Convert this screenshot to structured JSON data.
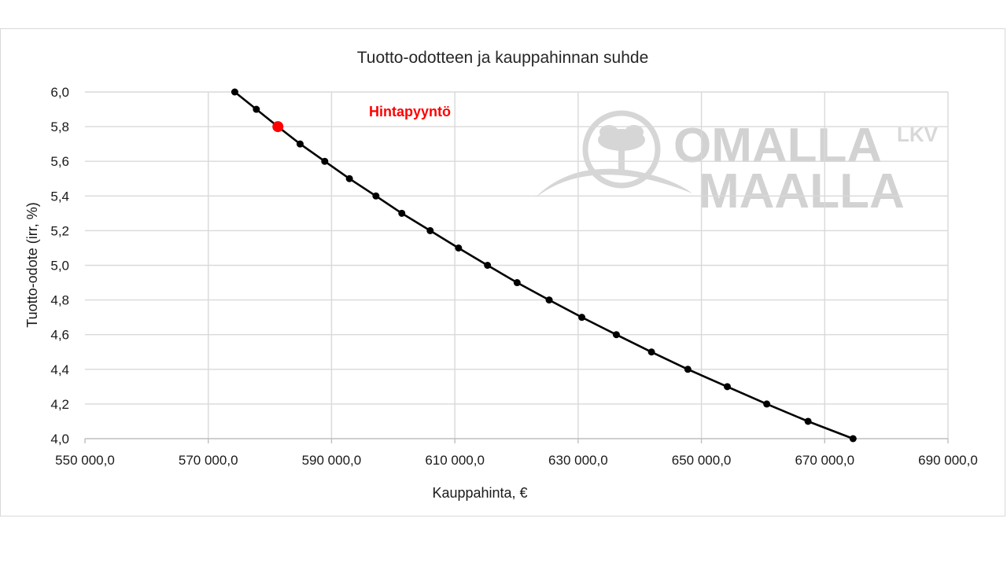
{
  "chart_data": {
    "type": "line",
    "title": "Tuotto-odotteen ja kauppahinnan suhde",
    "xlabel": "Kauppahinta, €",
    "ylabel": "Tuotto-odote (irr, %)",
    "xlim": [
      550000,
      690000
    ],
    "ylim": [
      4.0,
      6.0
    ],
    "x_ticks": [
      "550 000,0",
      "570 000,0",
      "590 000,0",
      "610 000,0",
      "630 000,0",
      "650 000,0",
      "670 000,0",
      "690 000,0"
    ],
    "y_ticks": [
      "6,0",
      "5,8",
      "5,6",
      "5,4",
      "5,2",
      "5,0",
      "4,8",
      "4,6",
      "4,4",
      "4,2",
      "4,0"
    ],
    "grid": true,
    "series": [
      {
        "color": "#000000",
        "x": [
          574300,
          577800,
          581300,
          584900,
          588900,
          592900,
          597200,
          601400,
          606000,
          610600,
          615300,
          620100,
          625300,
          630600,
          636200,
          641900,
          647800,
          654200,
          660600,
          667300,
          674600
        ],
        "y": [
          6.0,
          5.9,
          5.8,
          5.7,
          5.6,
          5.5,
          5.4,
          5.3,
          5.2,
          5.1,
          5.0,
          4.9,
          4.8,
          4.7,
          4.6,
          4.5,
          4.4,
          4.3,
          4.2,
          4.1,
          4.0
        ]
      }
    ],
    "highlight": {
      "x": 581300,
      "y": 5.8,
      "label": "Hintapyyntö",
      "color": "#ff0000"
    }
  },
  "watermark": {
    "line1": "OMALLA",
    "line2": "MAALLA",
    "suffix": "LKV"
  }
}
